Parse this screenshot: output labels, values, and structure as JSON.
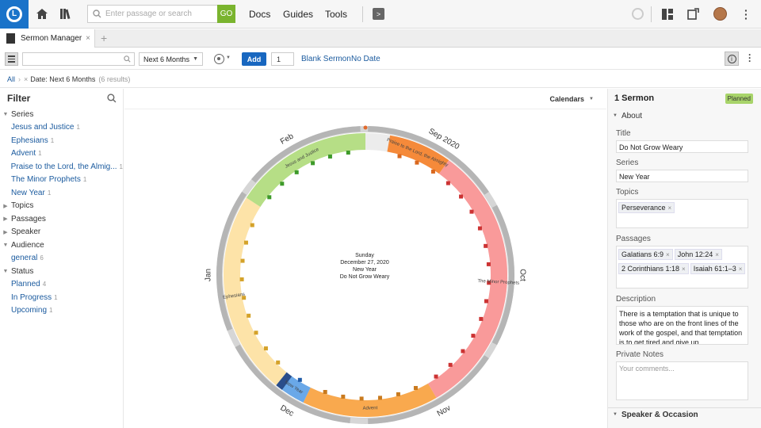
{
  "topbar": {
    "search_placeholder": "Enter passage or search",
    "go_label": "GO",
    "menus": [
      "Docs",
      "Guides",
      "Tools"
    ]
  },
  "tab": {
    "label": "Sermon Manager"
  },
  "toolbar": {
    "range_label": "Next 6 Months",
    "add_label": "Add",
    "count_value": "1",
    "blank_sermon_label": "Blank Sermon",
    "no_date_label": "No Date"
  },
  "breadcrumbs": {
    "all": "All",
    "filter": "Date: Next 6 Months",
    "results": "(6 results)"
  },
  "filter": {
    "title": "Filter",
    "rows": [
      {
        "label": "Series",
        "type": "group",
        "count": ""
      },
      {
        "label": "Jesus and Justice",
        "type": "item",
        "count": "1"
      },
      {
        "label": "Ephesians",
        "type": "item",
        "count": "1"
      },
      {
        "label": "Advent",
        "type": "item",
        "count": "1"
      },
      {
        "label": "Praise to the Lord, the Almig...",
        "type": "item",
        "count": "1"
      },
      {
        "label": "The Minor Prophets",
        "type": "item",
        "count": "1"
      },
      {
        "label": "New Year",
        "type": "item",
        "count": "1"
      },
      {
        "label": "Topics",
        "type": "group-collapsed",
        "count": ""
      },
      {
        "label": "Passages",
        "type": "group-collapsed",
        "count": ""
      },
      {
        "label": "Speaker",
        "type": "group-collapsed",
        "count": ""
      },
      {
        "label": "Audience",
        "type": "group",
        "count": ""
      },
      {
        "label": "general",
        "type": "item",
        "count": "6"
      },
      {
        "label": "Status",
        "type": "group",
        "count": ""
      },
      {
        "label": "Planned",
        "type": "item",
        "count": "4"
      },
      {
        "label": "In Progress",
        "type": "item",
        "count": "1"
      },
      {
        "label": "Upcoming",
        "type": "item",
        "count": "1"
      }
    ]
  },
  "calendar": {
    "calendars_label": "Calendars",
    "center_lines": [
      "Sunday",
      "December 27, 2020",
      "New Year",
      "Do Not Grow Weary"
    ],
    "months": [
      "Sep 2020",
      "Oct",
      "Nov",
      "Dec",
      "Jan",
      "Feb"
    ],
    "series": [
      {
        "name": "Praise to the Lord, the Almighty",
        "color": "#f58a3a"
      },
      {
        "name": "The Minor Prophets",
        "color": "#f99a9a"
      },
      {
        "name": "Advent",
        "color": "#f9a94e"
      },
      {
        "name": "New Year",
        "color": "#6aa8e8"
      },
      {
        "name": "Ephesians",
        "color": "#fde3a8"
      },
      {
        "name": "Jesus and Justice",
        "color": "#b6de86"
      }
    ]
  },
  "details": {
    "count_title": "1 Sermon",
    "status_badge": "Planned",
    "about_label": "About",
    "title_label": "Title",
    "title_value": "Do Not Grow Weary",
    "series_label": "Series",
    "series_value": "New Year",
    "topics_label": "Topics",
    "topics": [
      "Perseverance"
    ],
    "passages_label": "Passages",
    "passages": [
      "Galatians 6:9",
      "John 12:24",
      "2 Corinthians 1:18",
      "Isaiah 61:1–3"
    ],
    "description_label": "Description",
    "description_value": "There is a temptation that is unique to those who are on the front lines of the work of the gospel, and that temptation is to get tired and give up.",
    "private_notes_label": "Private Notes",
    "private_notes_placeholder": "Your comments...",
    "speaker_label": "Speaker & Occasion"
  }
}
